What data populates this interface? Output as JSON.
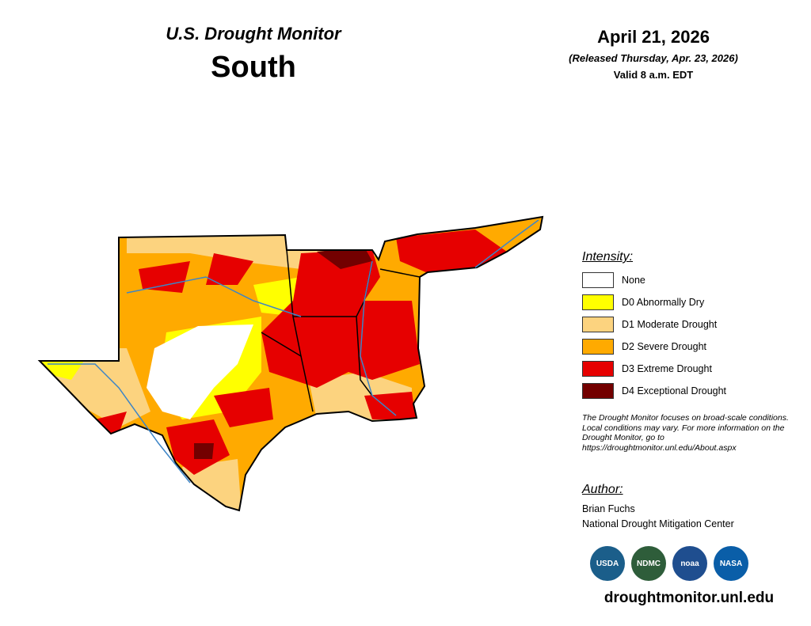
{
  "header": {
    "title": "U.S. Drought Monitor",
    "region": "South",
    "date": "April 21, 2026",
    "released": "(Released Thursday, Apr. 23, 2026)",
    "valid": "Valid 8 a.m. EDT"
  },
  "legend": {
    "title": "Intensity:",
    "items": [
      {
        "label": "None",
        "color": "#ffffff"
      },
      {
        "label": "D0 Abnormally Dry",
        "color": "#ffff00"
      },
      {
        "label": "D1 Moderate Drought",
        "color": "#fcd37f"
      },
      {
        "label": "D2 Severe Drought",
        "color": "#ffaa00"
      },
      {
        "label": "D3 Extreme Drought",
        "color": "#e60000"
      },
      {
        "label": "D4 Exceptional Drought",
        "color": "#730000"
      }
    ]
  },
  "note": "The Drought Monitor focuses on broad-scale conditions. Local conditions may vary. For more information on the Drought Monitor, go to https://droughtmonitor.unl.edu/About.aspx",
  "author": {
    "title": "Author:",
    "lines": [
      "Brian Fuchs",
      "National Drought Mitigation Center"
    ]
  },
  "logos": [
    "USDA",
    "NDMC",
    "noaa",
    "NASA"
  ],
  "footer": "droughtmonitor.unl.edu"
}
